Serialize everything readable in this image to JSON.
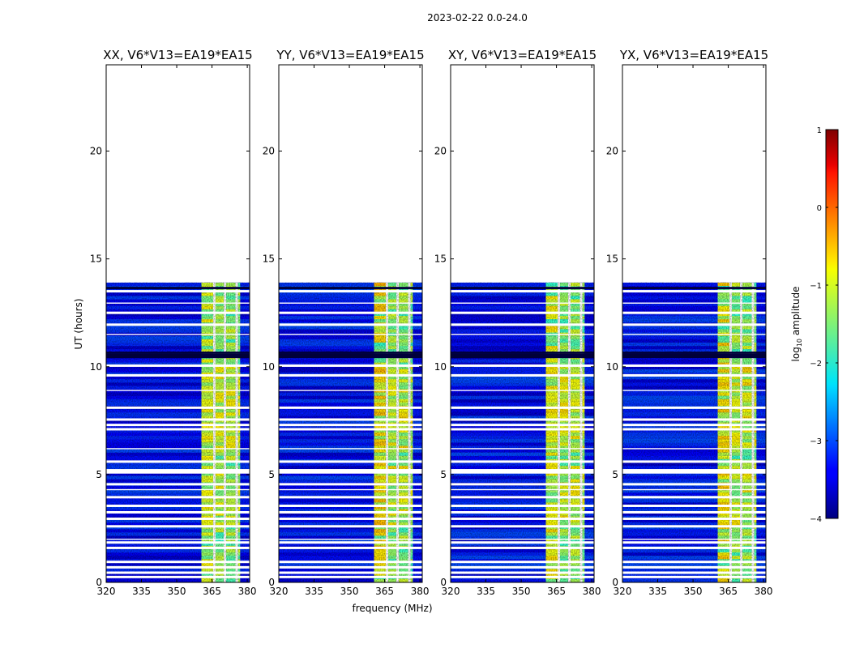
{
  "chart_data": {
    "type": "heatmap",
    "suptitle": "2023-02-22 0.0-24.0",
    "xlabel": "frequency (MHz)",
    "ylabel": "UT (hours)",
    "xlim": [
      320,
      381
    ],
    "ylim": [
      0,
      24
    ],
    "xticks": [
      320,
      335,
      350,
      365,
      380
    ],
    "yticks": [
      0,
      5,
      10,
      15,
      20
    ],
    "data_end_hour": 13.9,
    "panels": [
      {
        "title": "XX, V6*V13=EA19*EA15",
        "band_mhz": [
          363.5,
          377.5
        ],
        "band_max": -0.8
      },
      {
        "title": "YY, V6*V13=EA19*EA15",
        "band_mhz": [
          360.5,
          377.5
        ],
        "band_max": -0.5
      },
      {
        "title": "XY, V6*V13=EA19*EA15",
        "band_mhz": [
          360.5,
          377.5
        ],
        "band_max": -0.7
      },
      {
        "title": "YX, V6*V13=EA19*EA15",
        "band_mhz": [
          360.5,
          377.5
        ],
        "band_max": -0.6
      }
    ],
    "band_channels_mhz": [
      360.5,
      366.0,
      370.5,
      375.5,
      377.5
    ],
    "background_range": [
      -3.8,
      -2.7
    ],
    "flagged_hours": [
      0.25,
      0.45,
      0.7,
      0.95,
      1.6,
      1.85,
      2.6,
      2.95,
      3.25,
      3.55,
      3.95,
      4.55,
      5.1,
      5.2,
      5.6,
      7.1,
      7.3,
      7.55,
      8.1,
      9.6,
      10.05,
      11.95,
      12.5,
      13.5
    ],
    "flagged_thin_hours": [
      2.0,
      4.3,
      6.2,
      8.9,
      11.5,
      12.95
    ],
    "dark_rows_hours": [
      10.45,
      10.55,
      10.65,
      13.65
    ],
    "colorbar": {
      "label": "log10 amplitude",
      "range": [
        -4,
        1
      ],
      "ticks": [
        1,
        0,
        -1,
        -2,
        -3,
        -4
      ],
      "colormap": "jet"
    }
  }
}
